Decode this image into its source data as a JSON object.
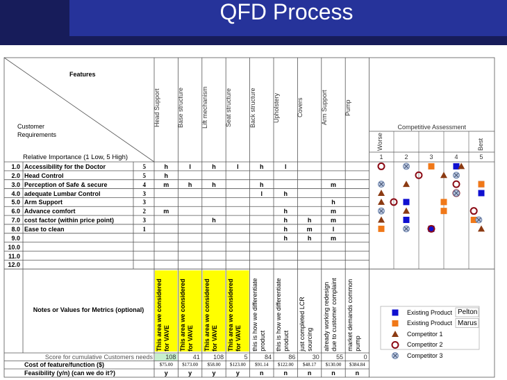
{
  "header": {
    "title": "QFD Process"
  },
  "matrix": {
    "features_label": "Features",
    "requirements_label": "Customer Requirements",
    "importance_label": "Relative Importance (1 Low, 5 High)",
    "features": [
      "Head Support",
      "Base structure",
      "Lift mechanism",
      "Seat structure",
      "Back structure",
      "Upholstery",
      "Covers",
      "Arm Support",
      "Pump"
    ],
    "rows": [
      {
        "number": "1.0",
        "requirement": "Accessibility for the Doctor",
        "importance": 5,
        "relations": [
          "h",
          "l",
          "h",
          "l",
          "h",
          "l",
          null,
          null,
          null
        ]
      },
      {
        "number": "2.0",
        "requirement": "Head Control",
        "importance": 5,
        "relations": [
          "h",
          null,
          null,
          null,
          null,
          null,
          null,
          null,
          null
        ]
      },
      {
        "number": "3.0",
        "requirement": "Perception of Safe & secure",
        "importance": 4,
        "relations": [
          "m",
          "h",
          "h",
          null,
          "h",
          null,
          null,
          "m",
          null
        ]
      },
      {
        "number": "4.0",
        "requirement": "adequate Lumbar Control",
        "importance": 3,
        "relations": [
          null,
          null,
          null,
          null,
          "l",
          "h",
          null,
          null,
          null
        ]
      },
      {
        "number": "5.0",
        "requirement": "Arm Support",
        "importance": 3,
        "relations": [
          null,
          null,
          null,
          null,
          null,
          null,
          null,
          "h",
          null
        ]
      },
      {
        "number": "6.0",
        "requirement": "Advance comfort",
        "importance": 2,
        "relations": [
          "m",
          null,
          null,
          null,
          null,
          "h",
          null,
          "m",
          null
        ]
      },
      {
        "number": "7.0",
        "requirement": "cost factor (within price point)",
        "importance": 3,
        "relations": [
          null,
          null,
          "h",
          null,
          null,
          "h",
          "h",
          "m",
          null
        ]
      },
      {
        "number": "8.0",
        "requirement": "Ease to clean",
        "importance": 1,
        "relations": [
          null,
          null,
          null,
          null,
          null,
          "h",
          "m",
          "l",
          null
        ]
      },
      {
        "number": "9.0",
        "relations": [
          null,
          null,
          null,
          null,
          null,
          "h",
          "h",
          "m",
          null
        ]
      },
      {
        "number": "10.0"
      },
      {
        "number": "11.0"
      },
      {
        "number": "12.0"
      }
    ],
    "notes_label": "Notes or Values for Metrics (optional)",
    "notes": [
      "This area we considered for VAVE",
      "This area we considered for VAVE",
      "This area we considered for VAVE",
      "This area we considered for VAVE",
      "this is how we differentiate product",
      "this is how we differentiate product",
      "just completed LCR sourcing",
      "already working redesign due to customer complaint",
      "market demands common pump"
    ],
    "score_label": "Score for cumulative Customers needs",
    "scores": [
      108,
      41,
      108,
      5,
      84,
      86,
      30,
      55,
      0
    ],
    "cost_label": "Cost of feature/function ($)",
    "costs": [
      "$75.00",
      "$173.00",
      "$58.00",
      "$123.00",
      "$91.14",
      "$122.00",
      "$48.17",
      "$130.00",
      "$384.84"
    ],
    "feasibility_label": "Feasibility (y/n) (can we do it?)",
    "feasibility": [
      "y",
      "y",
      "y",
      "y",
      "n",
      "n",
      "n",
      "n",
      "n"
    ]
  },
  "assessment": {
    "title": "Competitive Assessment",
    "worse_label": "Worse",
    "best_label": "Best",
    "xlim": [
      1,
      5
    ],
    "xticks": [
      1,
      2,
      3,
      4,
      5
    ],
    "competitors": [
      {
        "name": "Existing Product",
        "variant": "Pelton",
        "color": "#1010d0",
        "shape": "square",
        "ratings": [
          4,
          null,
          5,
          5,
          2,
          null,
          2,
          3
        ]
      },
      {
        "name": "Existing Product",
        "variant": "Marus",
        "color": "#f07818",
        "shape": "square",
        "ratings": [
          3,
          null,
          5,
          null,
          3.5,
          3.5,
          4.7,
          1
        ]
      },
      {
        "name": "Competitor 1",
        "color": "#8b3a12",
        "shape": "triangle",
        "ratings": [
          4.2,
          3.5,
          2,
          1,
          1,
          2,
          1,
          5
        ]
      },
      {
        "name": "Competitor 2",
        "color": "#8b0a14",
        "shape": "ring",
        "ratings": [
          1,
          2.5,
          4,
          4,
          1.5,
          4.7,
          null,
          3
        ]
      },
      {
        "name": "Competitor 3",
        "color": "#7088b0",
        "shape": "cross",
        "ratings": [
          2,
          4,
          1,
          4,
          null,
          1,
          4.9,
          2
        ]
      }
    ]
  }
}
